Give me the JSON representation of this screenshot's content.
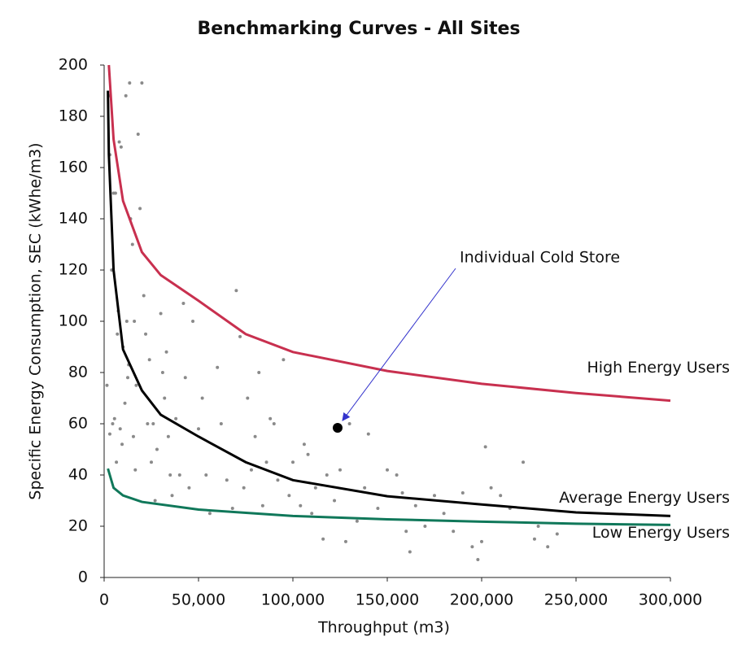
{
  "chart_data": {
    "type": "scatter",
    "title": "Benchmarking Curves - All Sites",
    "xlabel": "Throughput (m3)",
    "ylabel": "Specific Energy Consumption, SEC (kWhe/m3)",
    "xlim": [
      0,
      300000
    ],
    "ylim": [
      0,
      200
    ],
    "xticks": [
      0,
      {
        "value": 50000,
        "label": "50,000"
      },
      {
        "value": 100000,
        "label": "100,000"
      },
      {
        "value": 150000,
        "label": "150,000"
      },
      {
        "value": 200000,
        "label": "200,000"
      },
      {
        "value": 250000,
        "label": "250,000"
      },
      {
        "value": 300000,
        "label": "300,000"
      }
    ],
    "yticks": [
      0,
      20,
      40,
      60,
      80,
      100,
      120,
      140,
      160,
      180,
      200
    ],
    "series": [
      {
        "type": "scatter",
        "color": "#8a8a8a",
        "x": [
          1500,
          2500,
          3000,
          4000,
          4500,
          5000,
          6000,
          7000,
          7500,
          8000,
          9000,
          10000,
          11000,
          11500,
          12000,
          13000,
          14000,
          15000,
          16000,
          17000,
          18000,
          19000,
          20000,
          21000,
          22000,
          23000,
          24000,
          25000,
          26000,
          27000,
          28000,
          3000,
          5500,
          6500,
          8500,
          9500,
          12500,
          15500,
          16500,
          13500,
          30000,
          31000,
          32000,
          33000,
          34000,
          35000,
          36000,
          38000,
          40000,
          42000,
          43000,
          45000,
          47000,
          50000,
          52000,
          54000,
          56000,
          60000,
          62000,
          65000,
          68000,
          70000,
          72000,
          74000,
          76000,
          78000,
          80000,
          82000,
          84000,
          86000,
          88000,
          90000,
          92000,
          95000,
          98000,
          100000,
          104000,
          106000,
          108000,
          110000,
          112000,
          116000,
          118000,
          122000,
          125000,
          128000,
          130000,
          134000,
          138000,
          140000,
          145000,
          150000,
          155000,
          158000,
          160000,
          162000,
          165000,
          170000,
          175000,
          180000,
          185000,
          190000,
          195000,
          198000,
          200000,
          202000,
          205000,
          210000,
          215000,
          222000,
          228000,
          230000,
          235000,
          240000
        ],
        "values": [
          75,
          188,
          165,
          120,
          60,
          150,
          150,
          95,
          104,
          170,
          168,
          90,
          68,
          188,
          100,
          83,
          140,
          130,
          100,
          75,
          173,
          144,
          193,
          110,
          95,
          60,
          85,
          45,
          60,
          30,
          50,
          56,
          62,
          45,
          58,
          52,
          78,
          55,
          42,
          193,
          103,
          80,
          70,
          88,
          55,
          40,
          32,
          62,
          40,
          107,
          78,
          35,
          100,
          58,
          70,
          40,
          25,
          82,
          60,
          38,
          27,
          112,
          94,
          35,
          70,
          42,
          55,
          80,
          28,
          45,
          62,
          60,
          38,
          85,
          32,
          45,
          28,
          52,
          48,
          25,
          35,
          15,
          40,
          30,
          42,
          14,
          60,
          22,
          35,
          56,
          27,
          42,
          40,
          33,
          18,
          10,
          28,
          20,
          32,
          25,
          18,
          33,
          12,
          7,
          14,
          51,
          35,
          32,
          27,
          45,
          15,
          20,
          12,
          17
        ]
      },
      {
        "type": "line",
        "name": "High Energy Users",
        "color": "#c8304f",
        "x": [
          2500,
          5000,
          10000,
          20000,
          30000,
          50000,
          75000,
          100000,
          150000,
          200000,
          250000,
          300000
        ],
        "values": [
          200,
          171,
          147,
          127,
          118,
          108,
          95,
          88,
          80.6,
          75.6,
          72,
          69
        ]
      },
      {
        "type": "line",
        "name": "Average Energy Users",
        "color": "#000000",
        "x": [
          2000,
          2500,
          5000,
          10000,
          20000,
          30000,
          50000,
          75000,
          100000,
          150000,
          200000,
          250000,
          300000
        ],
        "values": [
          190,
          165,
          120,
          89,
          73,
          63.5,
          55,
          45,
          38,
          31.7,
          28.5,
          25.4,
          24
        ]
      },
      {
        "type": "line",
        "name": "Low Energy Users",
        "color": "#10785a",
        "x": [
          2000,
          5000,
          10000,
          20000,
          50000,
          100000,
          150000,
          200000,
          250000,
          300000
        ],
        "values": [
          42.5,
          35,
          32,
          29.5,
          26.5,
          24,
          22.7,
          21.8,
          21,
          20.5
        ]
      }
    ],
    "annotation": {
      "text": "Individual Cold Store",
      "x": 123700,
      "y": 58.4,
      "color": "#000000",
      "arrow_color": "#3333cc"
    }
  }
}
